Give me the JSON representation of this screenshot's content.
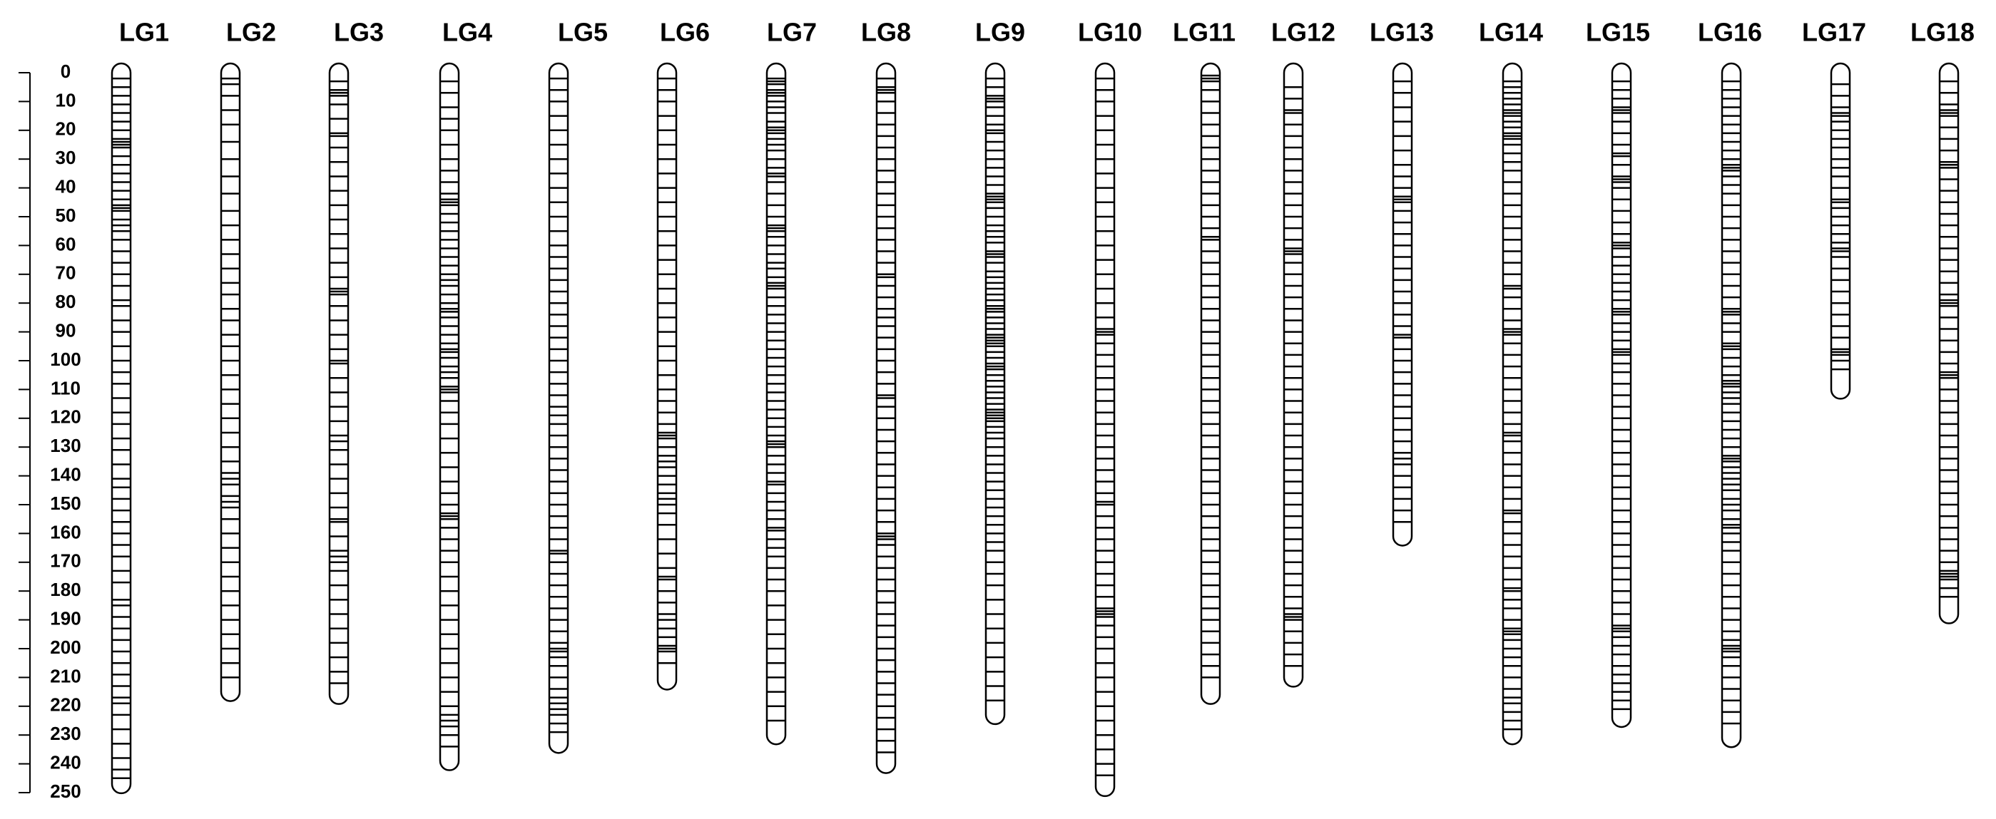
{
  "chart_data": {
    "type": "linkage_map",
    "color": "#000000",
    "ylim": [
      0,
      250
    ],
    "yticks": [
      0,
      10,
      20,
      30,
      40,
      50,
      60,
      70,
      80,
      90,
      100,
      110,
      120,
      130,
      140,
      150,
      160,
      170,
      180,
      190,
      200,
      210,
      220,
      230,
      240,
      250
    ],
    "series": [
      {
        "name": "LG1",
        "length": 247,
        "markers": [
          2,
          5,
          8,
          11,
          14,
          17,
          20,
          23,
          24,
          25,
          26,
          29,
          32,
          35,
          38,
          41,
          44,
          46,
          47,
          48,
          51,
          53,
          55,
          58,
          62,
          66,
          70,
          74,
          79,
          81,
          86,
          90,
          95,
          100,
          104,
          108,
          113,
          118,
          122,
          127,
          131,
          136,
          141,
          144,
          148,
          152,
          156,
          160,
          164,
          168,
          173,
          177,
          183,
          185,
          189,
          193,
          197,
          201,
          205,
          209,
          213,
          217,
          219,
          223,
          228,
          233,
          238,
          242,
          245
        ]
      },
      {
        "name": "LG2",
        "length": 215,
        "markers": [
          2,
          4,
          8,
          13,
          18,
          24,
          30,
          36,
          42,
          48,
          53,
          58,
          63,
          68,
          73,
          77,
          82,
          86,
          91,
          95,
          100,
          105,
          110,
          115,
          120,
          125,
          130,
          135,
          139,
          141,
          143,
          147,
          149,
          151,
          155,
          160,
          165,
          170,
          175,
          180,
          185,
          190,
          195,
          200,
          205,
          210
        ]
      },
      {
        "name": "LG3",
        "length": 216,
        "markers": [
          3,
          6,
          7,
          8,
          11,
          16,
          21,
          22,
          26,
          31,
          36,
          41,
          46,
          51,
          56,
          61,
          66,
          71,
          75,
          76,
          77,
          81,
          86,
          91,
          96,
          100,
          101,
          106,
          111,
          116,
          121,
          126,
          128,
          131,
          136,
          141,
          146,
          151,
          155,
          156,
          161,
          166,
          168,
          170,
          173,
          178,
          183,
          188,
          193,
          198,
          203,
          208,
          212
        ]
      },
      {
        "name": "LG4",
        "length": 239,
        "markers": [
          3,
          7,
          12,
          16,
          20,
          25,
          30,
          34,
          38,
          42,
          44,
          45,
          46,
          49,
          52,
          55,
          58,
          61,
          64,
          67,
          70,
          72,
          74,
          77,
          80,
          82,
          83,
          85,
          88,
          91,
          94,
          96,
          97,
          99,
          102,
          104,
          106,
          109,
          110,
          111,
          114,
          118,
          122,
          127,
          132,
          137,
          142,
          146,
          150,
          153,
          154,
          155,
          158,
          162,
          166,
          170,
          175,
          180,
          185,
          190,
          195,
          200,
          205,
          210,
          215,
          220,
          223,
          225,
          227,
          230,
          234
        ]
      },
      {
        "name": "LG5",
        "length": 233,
        "markers": [
          2,
          6,
          10,
          15,
          20,
          25,
          30,
          35,
          40,
          45,
          50,
          55,
          60,
          64,
          68,
          72,
          76,
          80,
          84,
          88,
          92,
          96,
          100,
          104,
          108,
          112,
          116,
          119,
          122,
          126,
          130,
          134,
          138,
          142,
          146,
          150,
          154,
          158,
          162,
          166,
          167,
          170,
          174,
          178,
          182,
          186,
          190,
          194,
          198,
          200,
          201,
          203,
          206,
          210,
          214,
          217,
          219,
          221,
          223,
          226,
          229
        ]
      },
      {
        "name": "LG6",
        "length": 211,
        "markers": [
          2,
          6,
          10,
          15,
          20,
          25,
          30,
          35,
          40,
          45,
          50,
          55,
          60,
          65,
          70,
          75,
          80,
          85,
          90,
          95,
          100,
          105,
          110,
          114,
          118,
          122,
          125,
          126,
          127,
          130,
          133,
          135,
          137,
          140,
          143,
          146,
          148,
          150,
          153,
          157,
          162,
          167,
          172,
          175,
          176,
          180,
          184,
          188,
          190,
          193,
          196,
          199,
          200,
          201,
          205
        ]
      },
      {
        "name": "LG7",
        "length": 230,
        "markers": [
          2,
          3,
          4,
          6,
          7,
          8,
          10,
          12,
          14,
          17,
          19,
          20,
          21,
          23,
          25,
          27,
          30,
          33,
          35,
          36,
          38,
          42,
          46,
          50,
          53,
          54,
          55,
          57,
          60,
          63,
          66,
          68,
          71,
          73,
          74,
          75,
          78,
          81,
          84,
          87,
          90,
          93,
          96,
          99,
          102,
          105,
          108,
          111,
          114,
          117,
          120,
          123,
          126,
          128,
          129,
          130,
          133,
          136,
          139,
          142,
          143,
          146,
          149,
          152,
          155,
          158,
          159,
          162,
          165,
          168,
          172,
          176,
          180,
          185,
          190,
          195,
          200,
          205,
          210,
          215,
          220,
          225
        ]
      },
      {
        "name": "LG8",
        "length": 240,
        "markers": [
          2,
          5,
          6,
          7,
          10,
          14,
          18,
          22,
          26,
          30,
          34,
          38,
          42,
          46,
          50,
          54,
          58,
          62,
          66,
          70,
          71,
          74,
          78,
          82,
          85,
          88,
          92,
          96,
          100,
          104,
          108,
          112,
          113,
          116,
          120,
          124,
          128,
          132,
          136,
          140,
          144,
          148,
          152,
          156,
          160,
          161,
          162,
          164,
          168,
          172,
          176,
          180,
          184,
          188,
          192,
          196,
          200,
          204,
          208,
          212,
          216,
          220,
          224,
          228,
          232,
          236
        ]
      },
      {
        "name": "LG9",
        "length": 223,
        "markers": [
          2,
          5,
          8,
          9,
          10,
          12,
          15,
          18,
          20,
          21,
          24,
          27,
          30,
          33,
          36,
          39,
          42,
          43,
          44,
          45,
          47,
          50,
          53,
          55,
          57,
          59,
          62,
          63,
          64,
          66,
          69,
          71,
          73,
          75,
          77,
          79,
          81,
          82,
          83,
          85,
          87,
          89,
          91,
          92,
          93,
          94,
          95,
          97,
          99,
          101,
          102,
          103,
          105,
          107,
          109,
          111,
          113,
          115,
          117,
          118,
          119,
          120,
          121,
          123,
          125,
          127,
          130,
          133,
          136,
          139,
          142,
          145,
          148,
          151,
          154,
          157,
          160,
          163,
          166,
          170,
          174,
          178,
          183,
          188,
          193,
          198,
          203,
          208,
          213,
          218
        ]
      },
      {
        "name": "LG10",
        "length": 248,
        "markers": [
          2,
          6,
          10,
          15,
          20,
          25,
          30,
          35,
          40,
          45,
          50,
          55,
          60,
          65,
          70,
          75,
          80,
          85,
          89,
          90,
          91,
          94,
          98,
          102,
          106,
          110,
          114,
          118,
          122,
          126,
          130,
          134,
          138,
          142,
          146,
          149,
          150,
          154,
          158,
          162,
          166,
          170,
          174,
          178,
          182,
          186,
          187,
          188,
          189,
          192,
          196,
          200,
          205,
          210,
          215,
          220,
          225,
          230,
          235,
          240,
          244
        ]
      },
      {
        "name": "LG11",
        "length": 216,
        "markers": [
          1,
          2,
          3,
          6,
          10,
          14,
          18,
          22,
          26,
          30,
          34,
          38,
          42,
          46,
          50,
          54,
          57,
          58,
          62,
          66,
          70,
          74,
          78,
          82,
          86,
          90,
          94,
          98,
          102,
          106,
          110,
          114,
          118,
          122,
          126,
          130,
          134,
          138,
          142,
          146,
          150,
          154,
          158,
          162,
          166,
          170,
          174,
          178,
          182,
          186,
          190,
          194,
          198,
          202,
          206,
          210
        ]
      },
      {
        "name": "LG12",
        "length": 210,
        "markers": [
          5,
          9,
          13,
          14,
          18,
          22,
          26,
          30,
          34,
          38,
          42,
          46,
          50,
          54,
          58,
          61,
          62,
          63,
          66,
          70,
          74,
          78,
          82,
          86,
          90,
          94,
          98,
          102,
          106,
          110,
          114,
          118,
          122,
          126,
          130,
          134,
          138,
          142,
          146,
          150,
          154,
          158,
          162,
          166,
          170,
          174,
          178,
          182,
          186,
          188,
          189,
          190,
          194,
          198,
          202,
          206
        ]
      },
      {
        "name": "LG13",
        "length": 161,
        "markers": [
          3,
          7,
          12,
          17,
          22,
          27,
          32,
          36,
          40,
          43,
          44,
          45,
          48,
          52,
          56,
          60,
          64,
          68,
          72,
          76,
          80,
          84,
          88,
          91,
          92,
          96,
          100,
          104,
          108,
          112,
          116,
          120,
          124,
          128,
          132,
          134,
          136,
          140,
          144,
          148,
          152,
          156
        ]
      },
      {
        "name": "LG14",
        "length": 230,
        "markers": [
          3,
          5,
          7,
          9,
          11,
          13,
          14,
          15,
          17,
          19,
          21,
          22,
          23,
          25,
          28,
          31,
          34,
          38,
          42,
          46,
          50,
          54,
          58,
          62,
          66,
          70,
          74,
          75,
          78,
          82,
          86,
          89,
          90,
          91,
          94,
          98,
          102,
          106,
          110,
          114,
          118,
          122,
          125,
          126,
          128,
          132,
          136,
          140,
          144,
          148,
          152,
          153,
          156,
          160,
          164,
          168,
          172,
          176,
          179,
          180,
          183,
          186,
          190,
          193,
          194,
          195,
          197,
          200,
          203,
          206,
          210,
          214,
          217,
          219,
          222,
          225,
          228
        ]
      },
      {
        "name": "LG15",
        "length": 224,
        "markers": [
          3,
          6,
          9,
          12,
          13,
          14,
          17,
          21,
          25,
          28,
          29,
          32,
          36,
          37,
          38,
          40,
          44,
          48,
          52,
          56,
          59,
          60,
          61,
          64,
          67,
          70,
          73,
          76,
          79,
          82,
          83,
          84,
          87,
          90,
          93,
          96,
          97,
          98,
          101,
          104,
          108,
          112,
          116,
          120,
          124,
          128,
          132,
          136,
          140,
          144,
          148,
          152,
          156,
          160,
          164,
          168,
          172,
          176,
          180,
          184,
          188,
          192,
          193,
          194,
          196,
          199,
          202,
          206,
          209,
          212,
          215,
          218,
          221
        ]
      },
      {
        "name": "LG16",
        "length": 231,
        "markers": [
          3,
          6,
          9,
          12,
          15,
          18,
          21,
          24,
          27,
          30,
          32,
          33,
          34,
          36,
          39,
          42,
          46,
          50,
          54,
          58,
          62,
          66,
          70,
          74,
          78,
          82,
          83,
          84,
          87,
          90,
          94,
          95,
          96,
          99,
          102,
          105,
          107,
          108,
          109,
          111,
          113,
          115,
          118,
          121,
          124,
          127,
          130,
          133,
          134,
          135,
          137,
          139,
          141,
          143,
          145,
          148,
          150,
          152,
          155,
          157,
          158,
          160,
          163,
          166,
          170,
          174,
          178,
          182,
          186,
          190,
          194,
          197,
          199,
          200,
          201,
          203,
          206,
          210,
          214,
          218,
          222,
          226
        ]
      },
      {
        "name": "LG17",
        "length": 110,
        "markers": [
          4,
          8,
          12,
          14,
          15,
          17,
          20,
          23,
          26,
          30,
          33,
          36,
          40,
          44,
          45,
          47,
          50,
          53,
          56,
          59,
          61,
          62,
          64,
          68,
          72,
          76,
          80,
          84,
          88,
          92,
          96,
          97,
          98,
          100,
          103
        ]
      },
      {
        "name": "LG18",
        "length": 188,
        "markers": [
          3,
          7,
          11,
          13,
          14,
          15,
          19,
          23,
          27,
          31,
          32,
          33,
          37,
          41,
          45,
          49,
          53,
          57,
          61,
          65,
          69,
          73,
          77,
          79,
          80,
          81,
          85,
          89,
          93,
          97,
          101,
          104,
          105,
          106,
          110,
          114,
          118,
          122,
          126,
          130,
          134,
          138,
          142,
          146,
          150,
          154,
          158,
          162,
          166,
          170,
          173,
          174,
          175,
          176,
          179,
          182
        ]
      }
    ]
  }
}
